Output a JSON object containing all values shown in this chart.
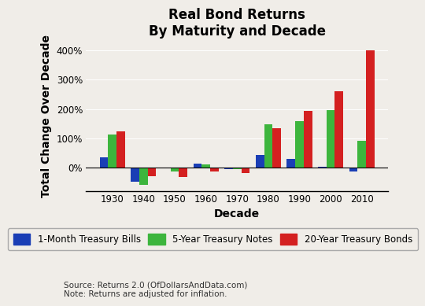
{
  "title": "Real Bond Returns\nBy Maturity and Decade",
  "xlabel": "Decade",
  "ylabel": "Total Change Over Decade",
  "decades": [
    1930,
    1940,
    1950,
    1960,
    1970,
    1980,
    1990,
    2000,
    2010
  ],
  "bills": [
    35,
    -48,
    -3,
    13,
    -5,
    43,
    30,
    3,
    -13
  ],
  "notes": [
    113,
    -60,
    -15,
    10,
    -5,
    148,
    158,
    197,
    90
  ],
  "bonds": [
    123,
    -30,
    -33,
    -13,
    -20,
    133,
    193,
    260,
    400
  ],
  "bill_color": "#1a3eb5",
  "note_color": "#3db53d",
  "bond_color": "#d42020",
  "ylim": [
    -80,
    430
  ],
  "yticks": [
    0,
    100,
    200,
    300,
    400
  ],
  "ytick_labels": [
    "0%",
    "100%",
    "200%",
    "300%",
    "400%"
  ],
  "source_text": "Source: Returns 2.0 (OfDollarsAndData.com)\nNote: Returns are adjusted for inflation.",
  "legend_labels": [
    "1-Month Treasury Bills",
    "5-Year Treasury Notes",
    "20-Year Treasury Bonds"
  ],
  "background_color": "#f0ede8",
  "bar_width": 0.27,
  "title_fontsize": 12,
  "axis_fontsize": 10,
  "tick_fontsize": 8.5,
  "legend_fontsize": 8.5,
  "source_fontsize": 7.5
}
